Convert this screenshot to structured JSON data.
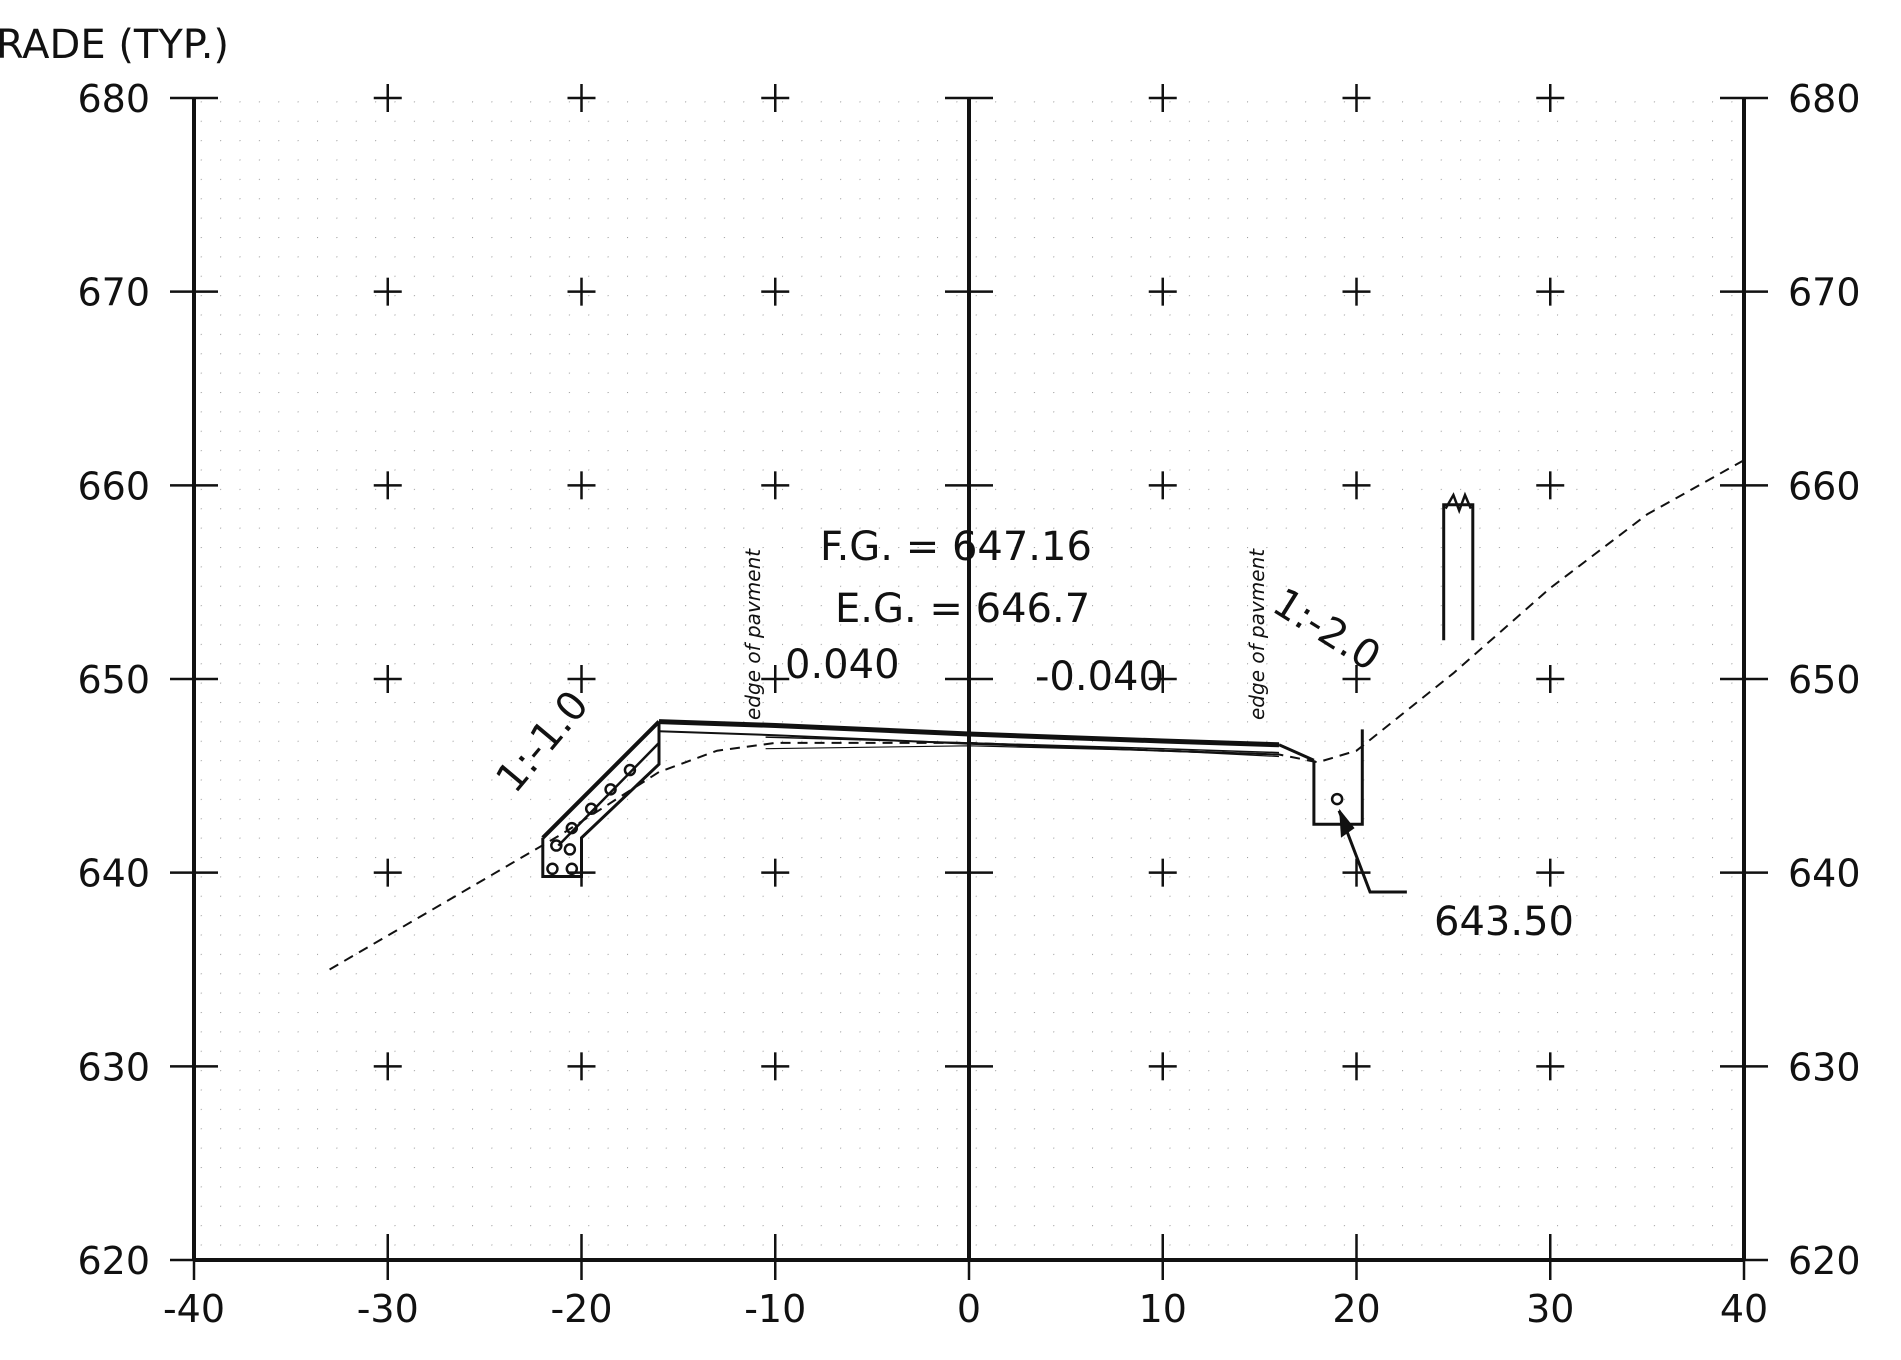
{
  "header_text": "RADE  (TYP.)",
  "x_ticks": [
    "-40",
    "-30",
    "-20",
    "-10",
    "0",
    "10",
    "20",
    "30",
    "40"
  ],
  "y_ticks": [
    "680",
    "670",
    "660",
    "650",
    "640",
    "630",
    "620"
  ],
  "axes": {
    "x_range": [
      -40,
      40
    ],
    "y_range": [
      620,
      680
    ],
    "minor_grid_step": 1,
    "major_grid_step": 10
  },
  "annotations": {
    "fg": "F.G.  = 647.16",
    "eg": "E.G.  = 646.7",
    "slope_left_pavement": "0.040",
    "slope_right_pavement": "-0.040",
    "edge_left": "edge of pavment",
    "edge_right": "edge of pavment",
    "side_slope_left": "1:-1.0",
    "side_slope_right": "1:-2.0",
    "ditch_elevation": "643.50"
  },
  "profiles": {
    "finished_grade_top": [
      [
        -16,
        647.8
      ],
      [
        -10,
        647.6
      ],
      [
        0,
        647.16
      ],
      [
        10,
        646.8
      ],
      [
        16,
        646.6
      ]
    ],
    "existing_ground": [
      [
        -33,
        635
      ],
      [
        -27,
        638.5
      ],
      [
        -21,
        642
      ],
      [
        -16,
        645.2
      ],
      [
        -13,
        646.3
      ],
      [
        -10,
        646.7
      ],
      [
        0,
        646.7
      ],
      [
        10,
        646.3
      ],
      [
        16,
        646.1
      ],
      [
        18,
        645.7
      ],
      [
        20,
        646.3
      ],
      [
        25,
        650.3
      ],
      [
        30,
        654.7
      ],
      [
        35,
        658.5
      ],
      [
        40,
        661.3
      ]
    ],
    "left_wall_top": [
      [
        -22,
        641.8
      ],
      [
        -16,
        647.8
      ]
    ],
    "left_wall_inner": [
      [
        -21.2,
        641.4
      ],
      [
        -16,
        646.7
      ]
    ],
    "right_ditch": [
      [
        17.8,
        645.8
      ],
      [
        17.8,
        642.5
      ],
      [
        20.3,
        642.5
      ],
      [
        20.3,
        647.4
      ]
    ],
    "ditch_point": [
      19,
      643.8
    ],
    "post": [
      [
        24.5,
        652
      ],
      [
        24.5,
        659
      ],
      [
        26,
        659
      ],
      [
        26,
        652
      ]
    ]
  },
  "colors": {
    "line": "#111111",
    "grid": "#9a9a9a",
    "background": "#ffffff"
  }
}
